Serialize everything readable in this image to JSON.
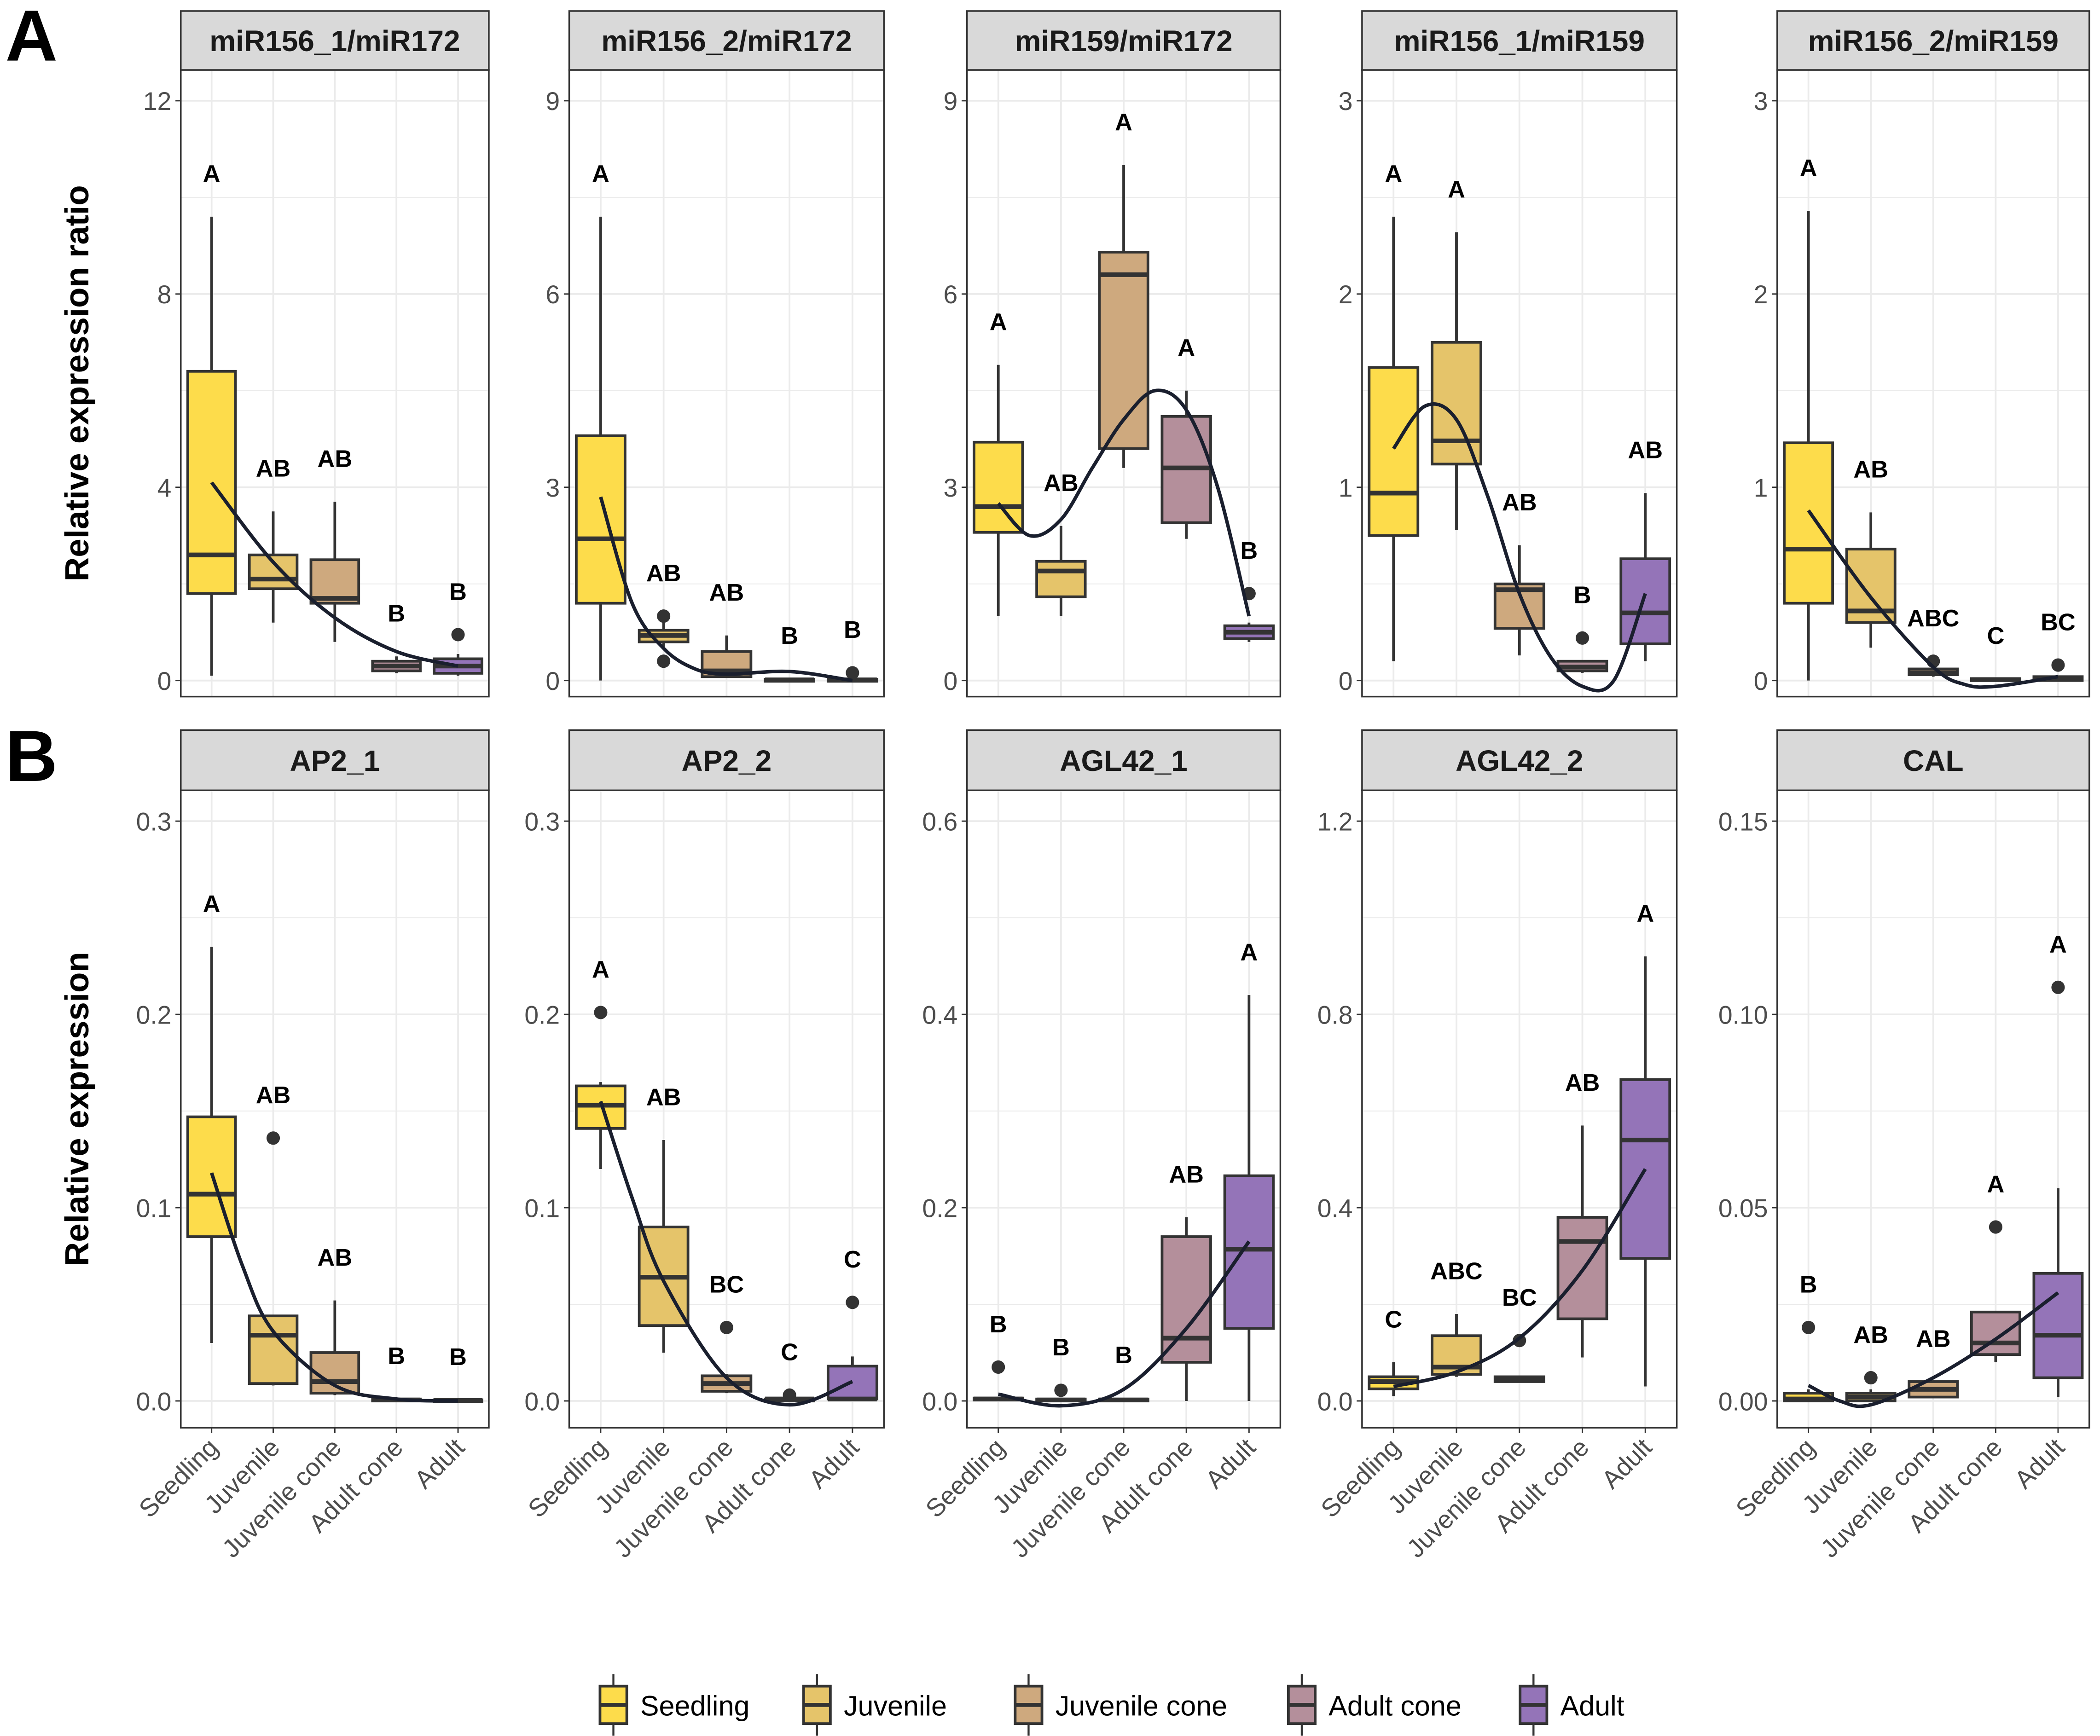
{
  "figure_labels": [
    "A",
    "B"
  ],
  "row_ylabels": [
    "Relative expression ratio",
    "Relative expression"
  ],
  "categories": [
    "Seedling",
    "Juvenile",
    "Juvenile cone",
    "Adult cone",
    "Adult"
  ],
  "colors": {
    "Seedling": "#FDDC4B",
    "Juvenile": "#E5C46A",
    "Juvenile cone": "#CEA97E",
    "Adult cone": "#B48F9B",
    "Adult": "#9474B8",
    "trend": "#1a1f2e",
    "grid": "#ebebeb",
    "strip": "#d9d9d9"
  },
  "legend": {
    "position": "bottom",
    "items": [
      "Seedling",
      "Juvenile",
      "Juvenile cone",
      "Adult cone",
      "Adult"
    ]
  },
  "chart_data": [
    {
      "type": "box",
      "row": 0,
      "title": "miR156_1/miR172",
      "ylim": [
        0,
        12
      ],
      "yticks": [
        "0",
        "4",
        "8",
        "12"
      ],
      "boxes": [
        {
          "stats": [
            0.1,
            1.8,
            2.6,
            6.4,
            9.6
          ],
          "outliers": [],
          "letter": "A"
        },
        {
          "stats": [
            1.2,
            1.9,
            2.1,
            2.6,
            3.5
          ],
          "outliers": [],
          "letter": "AB"
        },
        {
          "stats": [
            0.8,
            1.6,
            1.7,
            2.5,
            3.7
          ],
          "outliers": [],
          "letter": "AB"
        },
        {
          "stats": [
            0.15,
            0.2,
            0.3,
            0.4,
            0.5
          ],
          "outliers": [],
          "letter": "B"
        },
        {
          "stats": [
            0.1,
            0.15,
            0.3,
            0.45,
            0.55
          ],
          "outliers": [
            0.95
          ],
          "letter": "B"
        }
      ],
      "trend": [
        [
          1,
          4.1
        ],
        [
          2,
          2.45
        ],
        [
          3,
          1.3
        ],
        [
          4,
          0.6
        ],
        [
          5,
          0.3
        ]
      ]
    },
    {
      "type": "box",
      "row": 0,
      "title": "miR156_2/miR172",
      "ylim": [
        0,
        9
      ],
      "yticks": [
        "0",
        "3",
        "6",
        "9"
      ],
      "boxes": [
        {
          "stats": [
            0,
            1.2,
            2.2,
            3.8,
            7.2
          ],
          "outliers": [],
          "letter": "A"
        },
        {
          "stats": [
            0.5,
            0.6,
            0.7,
            0.78,
            0.9
          ],
          "outliers": [
            1.0,
            0.3
          ],
          "letter": "AB"
        },
        {
          "stats": [
            0.05,
            0.06,
            0.15,
            0.45,
            0.7
          ],
          "outliers": [],
          "letter": "AB"
        },
        {
          "stats": [
            0,
            0,
            0.01,
            0.02,
            0.03
          ],
          "outliers": [],
          "letter": "B"
        },
        {
          "stats": [
            0,
            0,
            0.01,
            0.02,
            0.03
          ],
          "outliers": [
            0.12
          ],
          "letter": "B"
        }
      ],
      "trend": [
        [
          1,
          2.85
        ],
        [
          1.5,
          1.2
        ],
        [
          2,
          0.5
        ],
        [
          2.5,
          0.18
        ],
        [
          3,
          0.1
        ],
        [
          4,
          0.14
        ],
        [
          5,
          0.0
        ]
      ]
    },
    {
      "type": "box",
      "row": 0,
      "title": "miR159/miR172",
      "ylim": [
        0,
        9
      ],
      "yticks": [
        "0",
        "3",
        "6",
        "9"
      ],
      "boxes": [
        {
          "stats": [
            1.0,
            2.3,
            2.7,
            3.7,
            4.9
          ],
          "outliers": [],
          "letter": "A"
        },
        {
          "stats": [
            1.0,
            1.3,
            1.7,
            1.85,
            2.4
          ],
          "outliers": [],
          "letter": "AB"
        },
        {
          "stats": [
            3.3,
            3.6,
            6.3,
            6.65,
            8.0
          ],
          "outliers": [],
          "letter": "A"
        },
        {
          "stats": [
            2.2,
            2.45,
            3.3,
            4.1,
            4.5
          ],
          "outliers": [],
          "letter": "A"
        },
        {
          "stats": [
            0.6,
            0.65,
            0.75,
            0.85,
            0.9
          ],
          "outliers": [
            1.35
          ],
          "letter": "B"
        }
      ],
      "trend": [
        [
          1,
          2.75
        ],
        [
          1.5,
          2.25
        ],
        [
          2,
          2.5
        ],
        [
          2.5,
          3.3
        ],
        [
          3,
          4.05
        ],
        [
          3.5,
          4.5
        ],
        [
          4,
          4.2
        ],
        [
          4.5,
          3.0
        ],
        [
          5,
          1.0
        ]
      ]
    },
    {
      "type": "box",
      "row": 0,
      "title": "miR156_1/miR159",
      "ylim": [
        0,
        3
      ],
      "yticks": [
        "0",
        "1",
        "2",
        "3"
      ],
      "boxes": [
        {
          "stats": [
            0.1,
            0.75,
            0.97,
            1.62,
            2.4
          ],
          "outliers": [],
          "letter": "A"
        },
        {
          "stats": [
            0.78,
            1.12,
            1.24,
            1.75,
            2.32
          ],
          "outliers": [],
          "letter": "A"
        },
        {
          "stats": [
            0.13,
            0.27,
            0.47,
            0.5,
            0.7
          ],
          "outliers": [],
          "letter": "AB"
        },
        {
          "stats": [
            0.04,
            0.05,
            0.07,
            0.1,
            0.1
          ],
          "outliers": [
            0.22
          ],
          "letter": "B"
        },
        {
          "stats": [
            0.1,
            0.19,
            0.35,
            0.63,
            0.97
          ],
          "outliers": [],
          "letter": "AB"
        }
      ],
      "trend": [
        [
          1,
          1.2
        ],
        [
          1.5,
          1.42
        ],
        [
          2,
          1.35
        ],
        [
          2.5,
          0.95
        ],
        [
          3,
          0.45
        ],
        [
          3.5,
          0.12
        ],
        [
          4,
          -0.03
        ],
        [
          4.5,
          0.0
        ],
        [
          5,
          0.45
        ]
      ]
    },
    {
      "type": "box",
      "row": 0,
      "title": "miR156_2/miR159",
      "ylim": [
        0,
        3
      ],
      "yticks": [
        "0",
        "1",
        "2",
        "3"
      ],
      "boxes": [
        {
          "stats": [
            0,
            0.4,
            0.68,
            1.23,
            2.43
          ],
          "outliers": [],
          "letter": "A"
        },
        {
          "stats": [
            0.17,
            0.3,
            0.36,
            0.68,
            0.87
          ],
          "outliers": [],
          "letter": "AB"
        },
        {
          "stats": [
            0.02,
            0.03,
            0.04,
            0.06,
            0.07
          ],
          "outliers": [
            0.1
          ],
          "letter": "ABC"
        },
        {
          "stats": [
            0,
            0,
            0.005,
            0.01,
            0.01
          ],
          "outliers": [],
          "letter": "C"
        },
        {
          "stats": [
            0,
            0,
            0.01,
            0.02,
            0.02
          ],
          "outliers": [
            0.08
          ],
          "letter": "BC"
        }
      ],
      "trend": [
        [
          1,
          0.88
        ],
        [
          2,
          0.43
        ],
        [
          3,
          0.07
        ],
        [
          3.5,
          -0.02
        ],
        [
          4,
          -0.03
        ],
        [
          5,
          0.02
        ]
      ]
    },
    {
      "type": "box",
      "row": 1,
      "title": "AP2_1",
      "ylim": [
        0,
        0.3
      ],
      "yticks": [
        "0.0",
        "0.1",
        "0.2",
        "0.3"
      ],
      "boxes": [
        {
          "stats": [
            0.03,
            0.085,
            0.107,
            0.147,
            0.235
          ],
          "outliers": [],
          "letter": "A"
        },
        {
          "stats": [
            0.008,
            0.009,
            0.034,
            0.044,
            0.044
          ],
          "outliers": [
            0.136
          ],
          "letter": "AB"
        },
        {
          "stats": [
            0.003,
            0.004,
            0.01,
            0.025,
            0.052
          ],
          "outliers": [],
          "letter": "AB"
        },
        {
          "stats": [
            0,
            0,
            0.0005,
            0.001,
            0.001
          ],
          "outliers": [],
          "letter": "B"
        },
        {
          "stats": [
            0,
            0,
            0.0003,
            0.0006,
            0.0006
          ],
          "outliers": [],
          "letter": "B"
        }
      ],
      "trend": [
        [
          1,
          0.118
        ],
        [
          1.5,
          0.07
        ],
        [
          2,
          0.036
        ],
        [
          3,
          0.008
        ],
        [
          4,
          0.001
        ],
        [
          5,
          0.0
        ]
      ]
    },
    {
      "type": "box",
      "row": 1,
      "title": "AP2_2",
      "ylim": [
        0,
        0.3
      ],
      "yticks": [
        "0.0",
        "0.1",
        "0.2",
        "0.3"
      ],
      "boxes": [
        {
          "stats": [
            0.12,
            0.141,
            0.153,
            0.163,
            0.165
          ],
          "outliers": [
            0.201
          ],
          "letter": "A"
        },
        {
          "stats": [
            0.025,
            0.039,
            0.064,
            0.09,
            0.135
          ],
          "outliers": [],
          "letter": "AB"
        },
        {
          "stats": [
            0.004,
            0.005,
            0.009,
            0.013,
            0.014
          ],
          "outliers": [
            0.038
          ],
          "letter": "BC"
        },
        {
          "stats": [
            0,
            0,
            0.001,
            0.001,
            0.001
          ],
          "outliers": [
            0.003
          ],
          "letter": "C"
        },
        {
          "stats": [
            0,
            0.001,
            0.001,
            0.018,
            0.023
          ],
          "outliers": [
            0.051
          ],
          "letter": "C"
        }
      ],
      "trend": [
        [
          1,
          0.155
        ],
        [
          1.5,
          0.105
        ],
        [
          2,
          0.062
        ],
        [
          3,
          0.012
        ],
        [
          4,
          -0.002
        ],
        [
          5,
          0.01
        ]
      ]
    },
    {
      "type": "box",
      "row": 1,
      "title": "AGL42_1",
      "ylim": [
        0,
        0.6
      ],
      "yticks": [
        "0.0",
        "0.2",
        "0.4",
        "0.6"
      ],
      "boxes": [
        {
          "stats": [
            0,
            0.001,
            0.002,
            0.003,
            0.004
          ],
          "outliers": [
            0.035
          ],
          "letter": "B"
        },
        {
          "stats": [
            0,
            0,
            0.001,
            0.002,
            0.003
          ],
          "outliers": [
            0.011
          ],
          "letter": "B"
        },
        {
          "stats": [
            0,
            0,
            0.001,
            0.002,
            0.003
          ],
          "outliers": [],
          "letter": "B"
        },
        {
          "stats": [
            0,
            0.04,
            0.065,
            0.17,
            0.19
          ],
          "outliers": [],
          "letter": "AB"
        },
        {
          "stats": [
            0,
            0.075,
            0.157,
            0.233,
            0.42
          ],
          "outliers": [],
          "letter": "A"
        }
      ],
      "trend": [
        [
          1,
          0.007
        ],
        [
          2,
          -0.005
        ],
        [
          3,
          0.012
        ],
        [
          4,
          0.075
        ],
        [
          5,
          0.165
        ]
      ]
    },
    {
      "type": "box",
      "row": 1,
      "title": "AGL42_2",
      "ylim": [
        0,
        1.2
      ],
      "yticks": [
        "0.0",
        "0.4",
        "0.8",
        "1.2"
      ],
      "boxes": [
        {
          "stats": [
            0.01,
            0.025,
            0.04,
            0.05,
            0.08
          ],
          "outliers": [],
          "letter": "C"
        },
        {
          "stats": [
            0.05,
            0.055,
            0.07,
            0.135,
            0.18
          ],
          "outliers": [],
          "letter": "ABC"
        },
        {
          "stats": [
            0.04,
            0.04,
            0.045,
            0.05,
            0.05
          ],
          "outliers": [
            0.125
          ],
          "letter": "BC"
        },
        {
          "stats": [
            0.09,
            0.17,
            0.33,
            0.38,
            0.57
          ],
          "outliers": [],
          "letter": "AB"
        },
        {
          "stats": [
            0.03,
            0.295,
            0.54,
            0.665,
            0.92
          ],
          "outliers": [],
          "letter": "A"
        }
      ],
      "trend": [
        [
          1,
          0.03
        ],
        [
          2,
          0.06
        ],
        [
          3,
          0.13
        ],
        [
          4,
          0.27
        ],
        [
          5,
          0.48
        ]
      ]
    },
    {
      "type": "box",
      "row": 1,
      "title": "CAL",
      "ylim": [
        0,
        0.15
      ],
      "yticks": [
        "0.00",
        "0.05",
        "0.10",
        "0.15"
      ],
      "boxes": [
        {
          "stats": [
            0,
            0,
            0.0005,
            0.002,
            0.003
          ],
          "outliers": [
            0.019
          ],
          "letter": "B"
        },
        {
          "stats": [
            0,
            0,
            0.001,
            0.002,
            0.003
          ],
          "outliers": [
            0.006
          ],
          "letter": "AB"
        },
        {
          "stats": [
            0.001,
            0.001,
            0.003,
            0.005,
            0.005
          ],
          "outliers": [],
          "letter": "AB"
        },
        {
          "stats": [
            0.01,
            0.012,
            0.015,
            0.023,
            0.023
          ],
          "outliers": [
            0.045
          ],
          "letter": "A"
        },
        {
          "stats": [
            0.001,
            0.006,
            0.017,
            0.033,
            0.055
          ],
          "outliers": [
            0.107
          ],
          "letter": "A"
        }
      ],
      "trend": [
        [
          1,
          0.004
        ],
        [
          1.5,
          0.0
        ],
        [
          2,
          -0.001
        ],
        [
          3,
          0.006
        ],
        [
          4,
          0.016
        ],
        [
          5,
          0.028
        ]
      ]
    }
  ]
}
